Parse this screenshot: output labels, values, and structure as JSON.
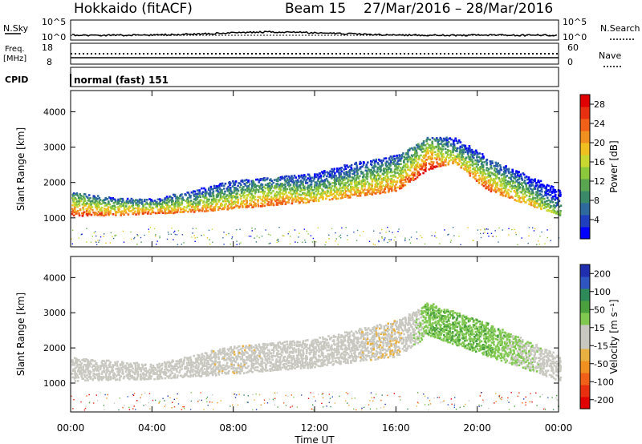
{
  "header": {
    "station": "Hokkaido (fitACF)",
    "beam": "Beam 15",
    "dates": "27/Mar/2016 – 28/Mar/2016"
  },
  "summary": {
    "nsky_label": "N.Sky",
    "nsearch_label": "N.Search",
    "freq_label_1": "Freq.",
    "freq_label_2": "[MHz]",
    "nave_label": "Nave",
    "cpid_label": "CPID",
    "cpid_text": "normal (fast) 151",
    "noise_ticks": [
      "10^5",
      "10^0"
    ],
    "freq_ticks": [
      "18",
      "8"
    ],
    "nave_ticks": [
      "60",
      "0"
    ]
  },
  "axes": {
    "ylabel": "Slant Range [km]",
    "xlabel": "Time UT",
    "x_ticks": [
      "00:00",
      "04:00",
      "08:00",
      "12:00",
      "16:00",
      "20:00",
      "00:00"
    ],
    "y_ticks": [
      "1000",
      "2000",
      "3000",
      "4000"
    ]
  },
  "power_bar": {
    "label": "Power [dB]",
    "ticks": [
      "4",
      "8",
      "12",
      "16",
      "20",
      "24",
      "28"
    ],
    "colors": [
      "#0000ff",
      "#1f3fbf",
      "#2e6a9e",
      "#3a8a6a",
      "#5aa550",
      "#8cc83c",
      "#c8d830",
      "#f0c020",
      "#f09020",
      "#f06018",
      "#e83010",
      "#e00000"
    ]
  },
  "velocity_bar": {
    "label": "Velocity [m s⁻¹]",
    "ticks": [
      "200",
      "100",
      "50",
      "15",
      "-15",
      "-50",
      "-100",
      "-200"
    ],
    "colors": [
      "#1f2fb0",
      "#2e55c0",
      "#2e8a58",
      "#4aa03c",
      "#80c850",
      "#c8c8c0",
      "#c8c8c0",
      "#e8b040",
      "#f09020",
      "#f06018",
      "#e83010",
      "#e00000"
    ]
  },
  "chart_data": [
    {
      "type": "heatmap",
      "title": "Power [dB]",
      "xlabel": "Time UT",
      "ylabel": "Slant Range [km]",
      "xlim": [
        0,
        24
      ],
      "ylim": [
        180,
        4600
      ],
      "grid": false,
      "colorbar_range": [
        0,
        30
      ],
      "scatter_band": [
        {
          "t": 0.0,
          "lower_km": 1100,
          "upper_km": 1750,
          "peak_dB": 26
        },
        {
          "t": 2.0,
          "lower_km": 1100,
          "upper_km": 1600,
          "peak_dB": 24
        },
        {
          "t": 4.0,
          "lower_km": 1150,
          "upper_km": 1550,
          "peak_dB": 24
        },
        {
          "t": 6.0,
          "lower_km": 1200,
          "upper_km": 1800,
          "peak_dB": 22
        },
        {
          "t": 8.0,
          "lower_km": 1300,
          "upper_km": 2100,
          "peak_dB": 22
        },
        {
          "t": 10.0,
          "lower_km": 1400,
          "upper_km": 2200,
          "peak_dB": 24
        },
        {
          "t": 12.0,
          "lower_km": 1500,
          "upper_km": 2300,
          "peak_dB": 20
        },
        {
          "t": 14.0,
          "lower_km": 1650,
          "upper_km": 2600,
          "peak_dB": 22
        },
        {
          "t": 16.0,
          "lower_km": 1800,
          "upper_km": 2800,
          "peak_dB": 24
        },
        {
          "t": 17.5,
          "lower_km": 2400,
          "upper_km": 3300,
          "peak_dB": 28
        },
        {
          "t": 18.8,
          "lower_km": 2600,
          "upper_km": 3300,
          "peak_dB": 20
        },
        {
          "t": 20.5,
          "lower_km": 1800,
          "upper_km": 2700,
          "peak_dB": 24
        },
        {
          "t": 22.5,
          "lower_km": 1400,
          "upper_km": 2200,
          "peak_dB": 20
        },
        {
          "t": 24.0,
          "lower_km": 1100,
          "upper_km": 1800,
          "peak_dB": 14
        }
      ]
    },
    {
      "type": "heatmap",
      "title": "Velocity [m s⁻¹]",
      "xlabel": "Time UT",
      "ylabel": "Slant Range [km]",
      "xlim": [
        0,
        24
      ],
      "ylim": [
        180,
        4600
      ],
      "grid": false,
      "colorbar_range": [
        -200,
        200
      ],
      "scatter_band": [
        {
          "t": 0.0,
          "lower_km": 1100,
          "upper_km": 1750,
          "typical_velocity": 0
        },
        {
          "t": 4.0,
          "lower_km": 1150,
          "upper_km": 1550,
          "typical_velocity": 0
        },
        {
          "t": 8.0,
          "lower_km": 1300,
          "upper_km": 2100,
          "typical_velocity": -20
        },
        {
          "t": 12.0,
          "lower_km": 1500,
          "upper_km": 2300,
          "typical_velocity": 0
        },
        {
          "t": 16.0,
          "lower_km": 1800,
          "upper_km": 2800,
          "typical_velocity": -30
        },
        {
          "t": 17.5,
          "lower_km": 2400,
          "upper_km": 3300,
          "typical_velocity": 60
        },
        {
          "t": 20.5,
          "lower_km": 1800,
          "upper_km": 2700,
          "typical_velocity": 60
        },
        {
          "t": 24.0,
          "lower_km": 1100,
          "upper_km": 1800,
          "typical_velocity": 0
        }
      ]
    }
  ]
}
